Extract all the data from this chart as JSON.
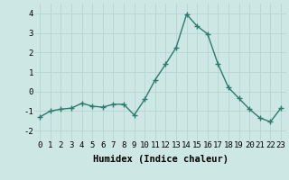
{
  "x": [
    0,
    1,
    2,
    3,
    4,
    5,
    6,
    7,
    8,
    9,
    10,
    11,
    12,
    13,
    14,
    15,
    16,
    17,
    18,
    19,
    20,
    21,
    22,
    23
  ],
  "y": [
    -1.3,
    -1.0,
    -0.9,
    -0.85,
    -0.6,
    -0.75,
    -0.8,
    -0.65,
    -0.65,
    -1.2,
    -0.4,
    0.6,
    1.4,
    2.25,
    3.95,
    3.35,
    2.95,
    1.4,
    0.2,
    -0.35,
    -0.9,
    -1.35,
    -1.55,
    -0.85
  ],
  "line_color": "#2d7a6e",
  "marker": "+",
  "marker_size": 4,
  "linewidth": 1.0,
  "xlabel": "Humidex (Indice chaleur)",
  "xlim": [
    -0.5,
    23.5
  ],
  "ylim": [
    -2.5,
    4.5
  ],
  "yticks": [
    -2,
    -1,
    0,
    1,
    2,
    3,
    4
  ],
  "xticks": [
    0,
    1,
    2,
    3,
    4,
    5,
    6,
    7,
    8,
    9,
    10,
    11,
    12,
    13,
    14,
    15,
    16,
    17,
    18,
    19,
    20,
    21,
    22,
    23
  ],
  "bg_color": "#cde8e4",
  "grid_color": "#b8d4d0",
  "tick_fontsize": 6.5,
  "xlabel_fontsize": 7.5
}
